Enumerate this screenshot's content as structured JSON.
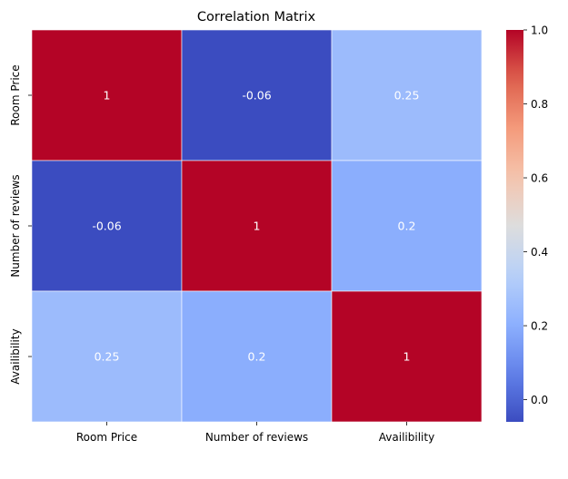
{
  "chart_data": {
    "type": "heatmap",
    "title": "Correlation Matrix",
    "xlabel": "",
    "ylabel": "",
    "x_categories": [
      "Room Price",
      "Number of reviews",
      "Availibility"
    ],
    "y_categories": [
      "Room Price",
      "Number of reviews",
      "Availibility"
    ],
    "values": [
      [
        1,
        -0.06,
        0.25
      ],
      [
        -0.06,
        1,
        0.2
      ],
      [
        0.25,
        0.2,
        1
      ]
    ],
    "cell_labels": [
      [
        "1",
        "-0.06",
        "0.25"
      ],
      [
        "-0.06",
        "1",
        "0.2"
      ],
      [
        "0.25",
        "0.2",
        "1"
      ]
    ],
    "colormap": "coolwarm",
    "vmin": -0.06,
    "vmax": 1.0,
    "colorbar_ticks": [
      0.0,
      0.2,
      0.4,
      0.6,
      0.8,
      1.0
    ],
    "colorbar_tick_labels": [
      "0.0",
      "0.2",
      "0.4",
      "0.6",
      "0.8",
      "1.0"
    ],
    "cell_border_color": "#ffffff"
  }
}
